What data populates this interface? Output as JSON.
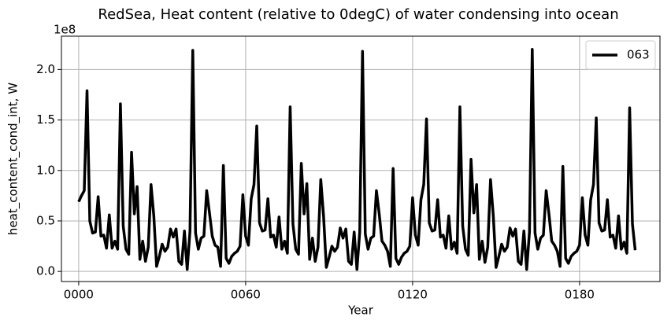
{
  "chart_data": {
    "type": "line",
    "title": "RedSea, Heat content (relative to 0degC) of water condensing into ocean",
    "x_label": "Year",
    "y_label": "heat_content_cond_int, W",
    "y_offset_label": "1e8",
    "xlim": [
      -6.2,
      208.9
    ],
    "ylim": [
      -0.1,
      2.33
    ],
    "xticks": [
      {
        "value": 0,
        "label": "0000"
      },
      {
        "value": 60,
        "label": "0060"
      },
      {
        "value": 120,
        "label": "0120"
      },
      {
        "value": 180,
        "label": "0180"
      }
    ],
    "yticks": [
      {
        "value": 0,
        "label": "0.0"
      },
      0.5,
      {
        "value": 1,
        "label": "1.0"
      },
      1.5,
      {
        "value": 2,
        "label": "2.0"
      }
    ],
    "grid": true,
    "legend": "upper right",
    "x": [
      0,
      1,
      2,
      3,
      4,
      5,
      6,
      7,
      8,
      9,
      10,
      11,
      12,
      13,
      14,
      15,
      16,
      17,
      18,
      19,
      20,
      21,
      22,
      23,
      24,
      25,
      26,
      27,
      28,
      29,
      30,
      31,
      32,
      33,
      34,
      35,
      36,
      37,
      38,
      39,
      40,
      41,
      42,
      43,
      44,
      45,
      46,
      47,
      48,
      49,
      50,
      51,
      52,
      53,
      54,
      55,
      56,
      57,
      58,
      59,
      60,
      61,
      62,
      63,
      64,
      65,
      66,
      67,
      68,
      69,
      70,
      71,
      72,
      73,
      74,
      75,
      76,
      77,
      78,
      79,
      80,
      81,
      82,
      83,
      84,
      85,
      86,
      87,
      88,
      89,
      90,
      91,
      92,
      93,
      94,
      95,
      96,
      97,
      98,
      99,
      100,
      101,
      102,
      103,
      104,
      105,
      106,
      107,
      108,
      109,
      110,
      111,
      112,
      113,
      114,
      115,
      116,
      117,
      118,
      119,
      120,
      121,
      122,
      123,
      124,
      125,
      126,
      127,
      128,
      129,
      130,
      131,
      132,
      133,
      134,
      135,
      136,
      137,
      138,
      139,
      140,
      141,
      142,
      143,
      144,
      145,
      146,
      147,
      148,
      149,
      150,
      151,
      152,
      153,
      154,
      155,
      156,
      157,
      158,
      159,
      160,
      161,
      162,
      163,
      164,
      165,
      166,
      167,
      168,
      169,
      170,
      171,
      172,
      173,
      174,
      175,
      176,
      177,
      178,
      179,
      180,
      181,
      182,
      183,
      184,
      185,
      186,
      187,
      188,
      189,
      190,
      191,
      192,
      193,
      194,
      195,
      196,
      197,
      198,
      199,
      200
    ],
    "series": [
      {
        "name": "063",
        "color": "#000000",
        "values": [
          0.69,
          0.75,
          0.8,
          1.79,
          0.5,
          0.38,
          0.39,
          0.74,
          0.35,
          0.36,
          0.23,
          0.56,
          0.23,
          0.3,
          0.22,
          1.66,
          0.45,
          0.22,
          0.17,
          1.18,
          0.57,
          0.84,
          0.12,
          0.3,
          0.1,
          0.24,
          0.86,
          0.55,
          0.05,
          0.15,
          0.27,
          0.2,
          0.24,
          0.42,
          0.34,
          0.42,
          0.1,
          0.07,
          0.4,
          0.02,
          0.4,
          2.19,
          0.38,
          0.22,
          0.33,
          0.35,
          0.8,
          0.58,
          0.35,
          0.26,
          0.24,
          0.05,
          1.05,
          0.13,
          0.08,
          0.15,
          0.18,
          0.2,
          0.25,
          0.76,
          0.35,
          0.26,
          0.72,
          0.86,
          1.44,
          0.48,
          0.4,
          0.41,
          0.72,
          0.34,
          0.36,
          0.24,
          0.54,
          0.22,
          0.3,
          0.18,
          1.63,
          0.47,
          0.22,
          0.17,
          1.07,
          0.57,
          0.87,
          0.12,
          0.33,
          0.1,
          0.24,
          0.91,
          0.55,
          0.04,
          0.14,
          0.25,
          0.2,
          0.24,
          0.43,
          0.33,
          0.42,
          0.1,
          0.07,
          0.39,
          0.02,
          0.39,
          2.18,
          0.37,
          0.22,
          0.33,
          0.35,
          0.8,
          0.57,
          0.3,
          0.26,
          0.2,
          0.05,
          1.02,
          0.13,
          0.07,
          0.14,
          0.18,
          0.2,
          0.25,
          0.73,
          0.36,
          0.26,
          0.71,
          0.86,
          1.51,
          0.48,
          0.4,
          0.41,
          0.71,
          0.34,
          0.36,
          0.23,
          0.55,
          0.22,
          0.29,
          0.18,
          1.63,
          0.45,
          0.22,
          0.16,
          1.11,
          0.58,
          0.86,
          0.12,
          0.3,
          0.09,
          0.24,
          0.91,
          0.55,
          0.04,
          0.15,
          0.27,
          0.2,
          0.24,
          0.43,
          0.35,
          0.42,
          0.1,
          0.07,
          0.4,
          0.02,
          0.39,
          2.2,
          0.38,
          0.22,
          0.33,
          0.36,
          0.8,
          0.57,
          0.3,
          0.26,
          0.2,
          0.05,
          1.04,
          0.13,
          0.08,
          0.15,
          0.18,
          0.2,
          0.26,
          0.73,
          0.36,
          0.26,
          0.71,
          0.86,
          1.52,
          0.48,
          0.4,
          0.41,
          0.71,
          0.34,
          0.36,
          0.23,
          0.55,
          0.22,
          0.29,
          0.18,
          1.62,
          0.47,
          0.21
        ]
      }
    ]
  }
}
